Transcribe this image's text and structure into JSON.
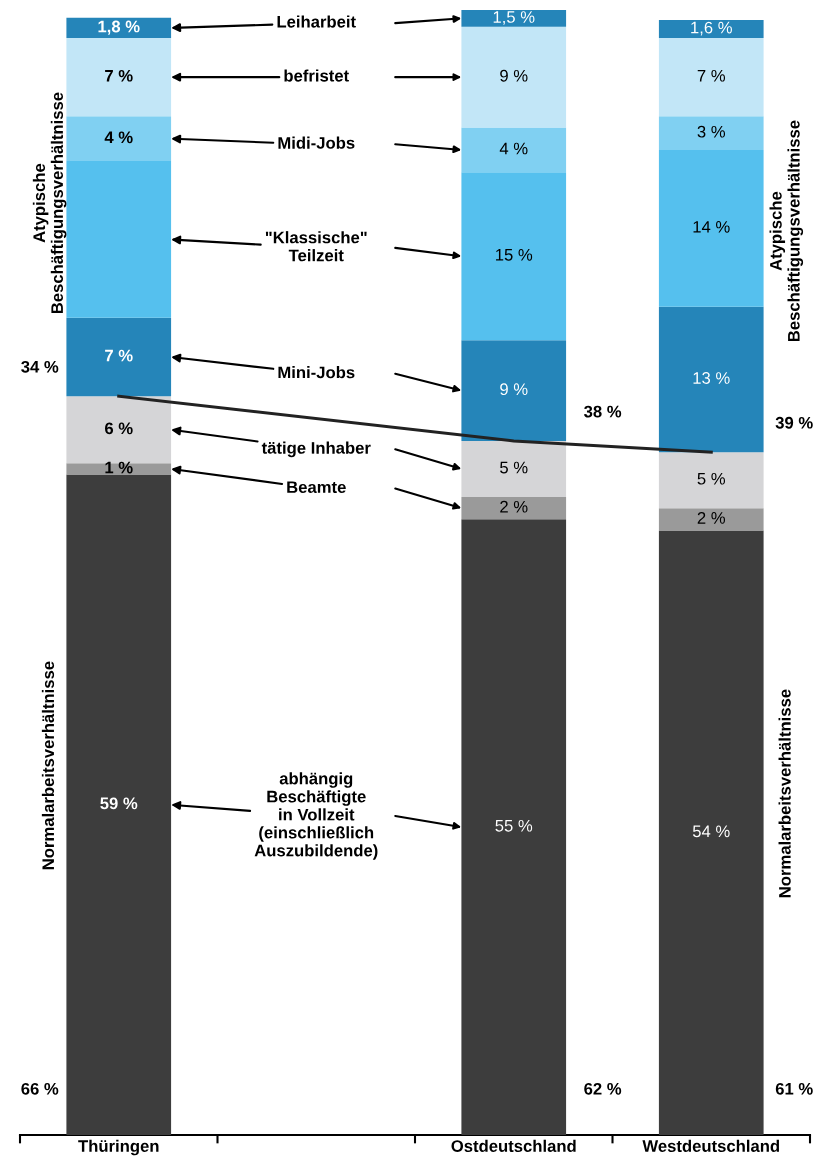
{
  "chart_data": {
    "type": "bar",
    "stacked": true,
    "tick_labels": "x",
    "grid": false,
    "legend": false,
    "categories": [
      "Thüringen",
      null,
      "Ostdeutschland",
      "Westdeutschland"
    ],
    "series": [
      {
        "name": "abhängig\nBeschäftigte\nin Vollzeit\n(einschließlich\nAuszubildende)",
        "color": "#3d3d3d",
        "values": [
          59,
          null,
          55,
          54
        ],
        "value_labels": [
          "59 %",
          null,
          "55 %",
          "54 %"
        ]
      },
      {
        "name": "Beamte",
        "color": "#9a9a9a",
        "values": [
          1,
          null,
          2,
          2
        ],
        "value_labels": [
          "1 %",
          null,
          "2 %",
          "2 %"
        ]
      },
      {
        "name": "tätige Inhaber",
        "color": "#d5d5d7",
        "values": [
          6,
          null,
          5,
          5
        ],
        "value_labels": [
          "6 %",
          null,
          "5 %",
          "5 %"
        ]
      },
      {
        "name": "Mini-Jobs",
        "color": "#2585b9",
        "values": [
          7,
          null,
          9,
          13
        ],
        "value_labels": [
          "7 %",
          null,
          "9 %",
          "13 %"
        ]
      },
      {
        "name": "\"Klassische\"\nTeilzeit",
        "color": "#55c0ee",
        "values": [
          14,
          null,
          15,
          14
        ],
        "value_labels": [
          null,
          null,
          "15 %",
          "14 %"
        ]
      },
      {
        "name": "Midi-Jobs",
        "color": "#80d0f2",
        "values": [
          4,
          null,
          4,
          3
        ],
        "value_labels": [
          "4 %",
          null,
          "4 %",
          "3 %"
        ]
      },
      {
        "name": "befristet",
        "color": "#c2e6f7",
        "values": [
          7,
          null,
          9,
          7
        ],
        "value_labels": [
          "7 %",
          null,
          "9 %",
          "7 %"
        ]
      },
      {
        "name": "Leiharbeit",
        "color": "#2585b9",
        "values": [
          1.8,
          null,
          1.5,
          1.6
        ],
        "value_labels": [
          "1,8 %",
          null,
          "1,5 %",
          "1,6 %"
        ]
      },
      {
        "type": "line",
        "color": "#222222",
        "values": [
          66,
          null,
          62,
          61
        ]
      }
    ],
    "annotations": [
      "Atypische\nBeschäftigungsverhältnisse",
      "Normalarbeitsverhältnisse",
      "Atypische\nBeschäftigungsverhältnisse",
      "Normalarbeitsverhältnisse",
      "34 %",
      "66 %",
      "38 %",
      "62 %",
      "39 %",
      "61 %"
    ]
  }
}
